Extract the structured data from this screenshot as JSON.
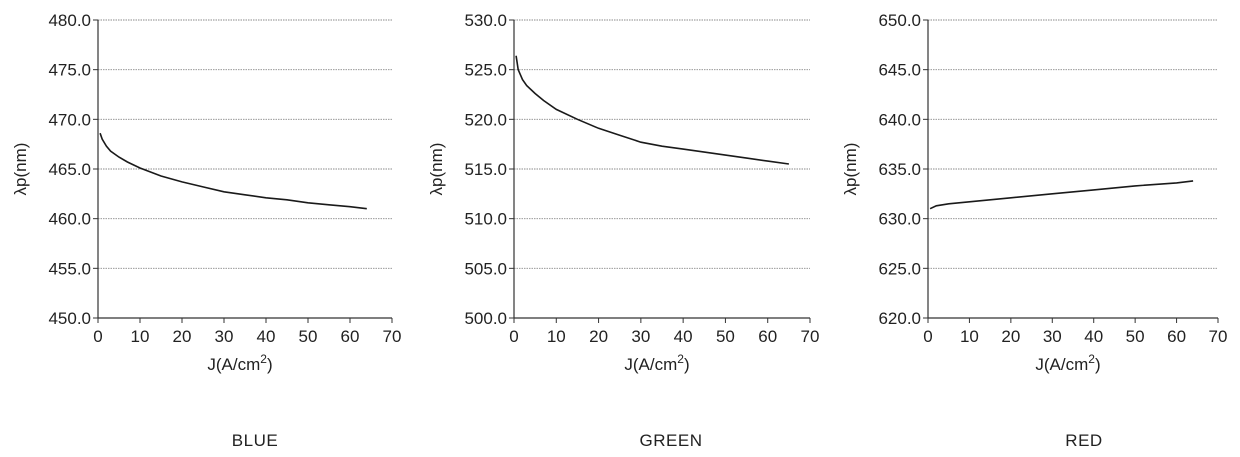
{
  "chart_data": [
    {
      "type": "line",
      "caption": "BLUE",
      "xlabel": "J(A/cm2)",
      "ylabel": "λp(nm)",
      "xlim": [
        0,
        70
      ],
      "ylim": [
        450,
        480
      ],
      "xticks": [
        "0",
        "10",
        "20",
        "30",
        "40",
        "50",
        "60",
        "70"
      ],
      "yticks": [
        "450.0",
        "455.0",
        "460.0",
        "465.0",
        "470.0",
        "475.0",
        "480.0"
      ],
      "grid": true,
      "series": [
        {
          "x": [
            0.5,
            1,
            2,
            3,
            5,
            7,
            10,
            15,
            20,
            25,
            30,
            35,
            40,
            45,
            50,
            55,
            60,
            64
          ],
          "y": [
            468.6,
            468.0,
            467.3,
            466.8,
            466.2,
            465.7,
            465.1,
            464.3,
            463.7,
            463.2,
            462.7,
            462.4,
            462.1,
            461.9,
            461.6,
            461.4,
            461.2,
            461.0
          ]
        }
      ]
    },
    {
      "type": "line",
      "caption": "GREEN",
      "xlabel": "J(A/cm2)",
      "ylabel": "λp(nm)",
      "xlim": [
        0,
        70
      ],
      "ylim": [
        500,
        530
      ],
      "xticks": [
        "0",
        "10",
        "20",
        "30",
        "40",
        "50",
        "60",
        "70"
      ],
      "yticks": [
        "500.0",
        "505.0",
        "510.0",
        "515.0",
        "520.0",
        "525.0",
        "530.0"
      ],
      "grid": true,
      "series": [
        {
          "x": [
            0.5,
            1,
            2,
            3,
            5,
            7,
            10,
            15,
            20,
            25,
            30,
            35,
            40,
            45,
            50,
            55,
            60,
            65
          ],
          "y": [
            526.4,
            525.0,
            524.0,
            523.4,
            522.6,
            521.9,
            521.0,
            520.0,
            519.1,
            518.4,
            517.7,
            517.3,
            517.0,
            516.7,
            516.4,
            516.1,
            515.8,
            515.5
          ]
        }
      ]
    },
    {
      "type": "line",
      "caption": "RED",
      "xlabel": "J(A/cm2)",
      "ylabel": "λp(nm)",
      "xlim": [
        0,
        70
      ],
      "ylim": [
        620,
        650
      ],
      "xticks": [
        "0",
        "10",
        "20",
        "30",
        "40",
        "50",
        "60",
        "70"
      ],
      "yticks": [
        "620.0",
        "625.0",
        "630.0",
        "635.0",
        "640.0",
        "645.0",
        "650.0"
      ],
      "grid": true,
      "series": [
        {
          "x": [
            0.5,
            2,
            5,
            10,
            20,
            30,
            40,
            50,
            60,
            64
          ],
          "y": [
            631.0,
            631.3,
            631.5,
            631.7,
            632.1,
            632.5,
            632.9,
            633.3,
            633.6,
            633.8
          ]
        }
      ]
    }
  ]
}
